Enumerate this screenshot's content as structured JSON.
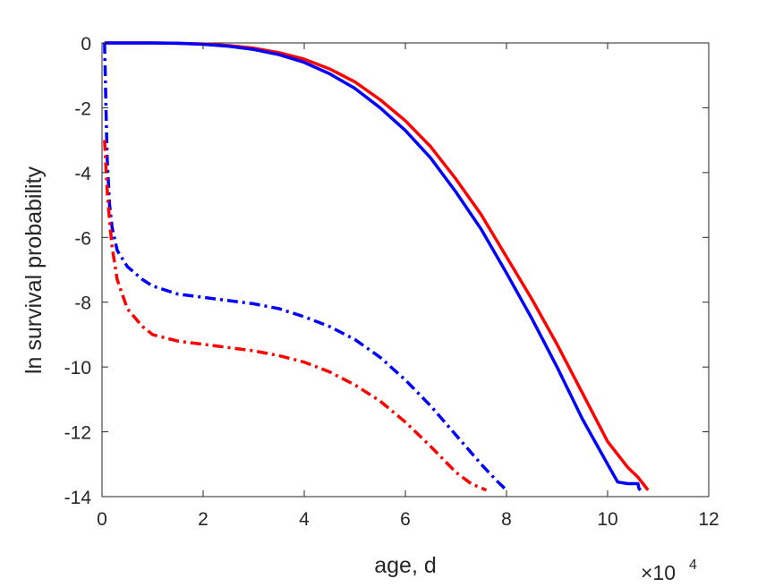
{
  "chart_data": {
    "type": "line",
    "title": "",
    "xlabel": "age, d",
    "ylabel": "ln survival probability",
    "x_exponent_label": {
      "base": "×10",
      "exponent": "4"
    },
    "xlim": [
      0,
      12
    ],
    "ylim": [
      -14,
      0
    ],
    "xticks": [
      "0",
      "2",
      "4",
      "6",
      "8",
      "10",
      "12"
    ],
    "yticks": [
      "0",
      "-2",
      "-4",
      "-6",
      "-8",
      "-10",
      "-12",
      "-14"
    ],
    "grid": false,
    "legend": null,
    "series": [
      {
        "color": "#ff0000",
        "style": "solid",
        "x": [
          0.05,
          0.5,
          1,
          1.5,
          2,
          2.5,
          3,
          3.5,
          4,
          4.5,
          5,
          5.5,
          6,
          6.5,
          7,
          7.5,
          8,
          8.5,
          9,
          9.5,
          10,
          10.4,
          10.6,
          10.8
        ],
        "y": [
          0,
          0,
          0,
          -0.01,
          -0.03,
          -0.08,
          -0.16,
          -0.3,
          -0.5,
          -0.8,
          -1.2,
          -1.75,
          -2.4,
          -3.2,
          -4.2,
          -5.3,
          -6.6,
          -7.9,
          -9.3,
          -10.8,
          -12.3,
          -13.1,
          -13.4,
          -13.8
        ]
      },
      {
        "color": "#0000ff",
        "style": "solid",
        "x": [
          0.05,
          0.5,
          1,
          1.5,
          2,
          2.5,
          3,
          3.5,
          4,
          4.5,
          5,
          5.5,
          6,
          6.5,
          7,
          7.5,
          8,
          8.5,
          9,
          9.5,
          10,
          10.2,
          10.4,
          10.6,
          10.62,
          10.65
        ],
        "y": [
          0,
          0,
          0,
          -0.01,
          -0.04,
          -0.1,
          -0.2,
          -0.36,
          -0.6,
          -0.95,
          -1.4,
          -2.0,
          -2.7,
          -3.55,
          -4.6,
          -5.75,
          -7.1,
          -8.5,
          -10.0,
          -11.6,
          -13.0,
          -13.55,
          -13.6,
          -13.6,
          -13.75,
          -13.8
        ]
      },
      {
        "color": "#0000ff",
        "style": "dashdot",
        "x": [
          0.05,
          0.1,
          0.15,
          0.2,
          0.3,
          0.5,
          0.8,
          1,
          1.5,
          2,
          2.5,
          3,
          3.5,
          4,
          4.5,
          5,
          5.5,
          6,
          6.5,
          7,
          7.5,
          7.8,
          8.0
        ],
        "y": [
          0,
          -3.5,
          -5.0,
          -5.7,
          -6.4,
          -6.9,
          -7.3,
          -7.5,
          -7.75,
          -7.85,
          -7.95,
          -8.05,
          -8.2,
          -8.45,
          -8.75,
          -9.15,
          -9.7,
          -10.4,
          -11.2,
          -12.1,
          -13.0,
          -13.5,
          -13.8
        ]
      },
      {
        "color": "#ff0000",
        "style": "dashdot",
        "x": [
          0.05,
          0.1,
          0.15,
          0.2,
          0.3,
          0.5,
          0.8,
          1,
          1.5,
          2,
          2.5,
          3,
          3.5,
          4,
          4.5,
          5,
          5.5,
          6,
          6.5,
          7,
          7.3,
          7.6
        ],
        "y": [
          -3.0,
          -4.5,
          -5.5,
          -6.3,
          -7.3,
          -8.2,
          -8.75,
          -9.0,
          -9.2,
          -9.3,
          -9.4,
          -9.5,
          -9.65,
          -9.85,
          -10.15,
          -10.55,
          -11.05,
          -11.7,
          -12.45,
          -13.25,
          -13.6,
          -13.8
        ]
      }
    ]
  }
}
